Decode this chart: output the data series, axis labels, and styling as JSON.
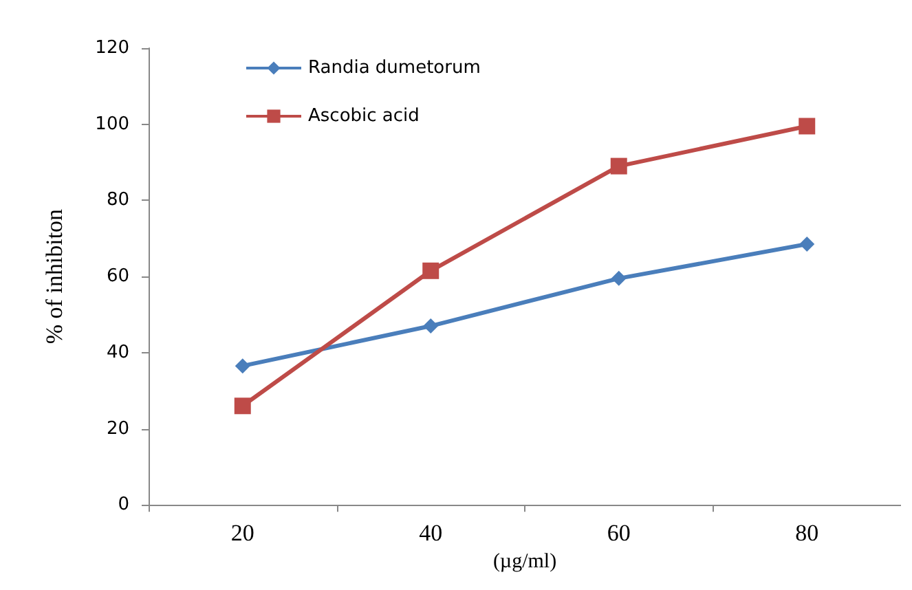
{
  "chart_data": {
    "type": "line",
    "xlabel": "(µg/ml)",
    "ylabel": "% of inhibiton",
    "categories": [
      "20",
      "40",
      "60",
      "80"
    ],
    "series": [
      {
        "name": "Randia dumetorum",
        "color": "#4a7ebb",
        "marker": "diamond",
        "values": [
          36.5,
          47,
          59.5,
          68.5
        ]
      },
      {
        "name": "Ascobic acid",
        "color": "#be4b48",
        "marker": "square",
        "values": [
          26,
          61.5,
          89,
          99.5
        ]
      }
    ],
    "ylim": [
      0,
      120
    ],
    "yticks": [
      0,
      20,
      40,
      60,
      80,
      100,
      120
    ],
    "grid": false,
    "legend": "top left",
    "line_style": "solid"
  }
}
